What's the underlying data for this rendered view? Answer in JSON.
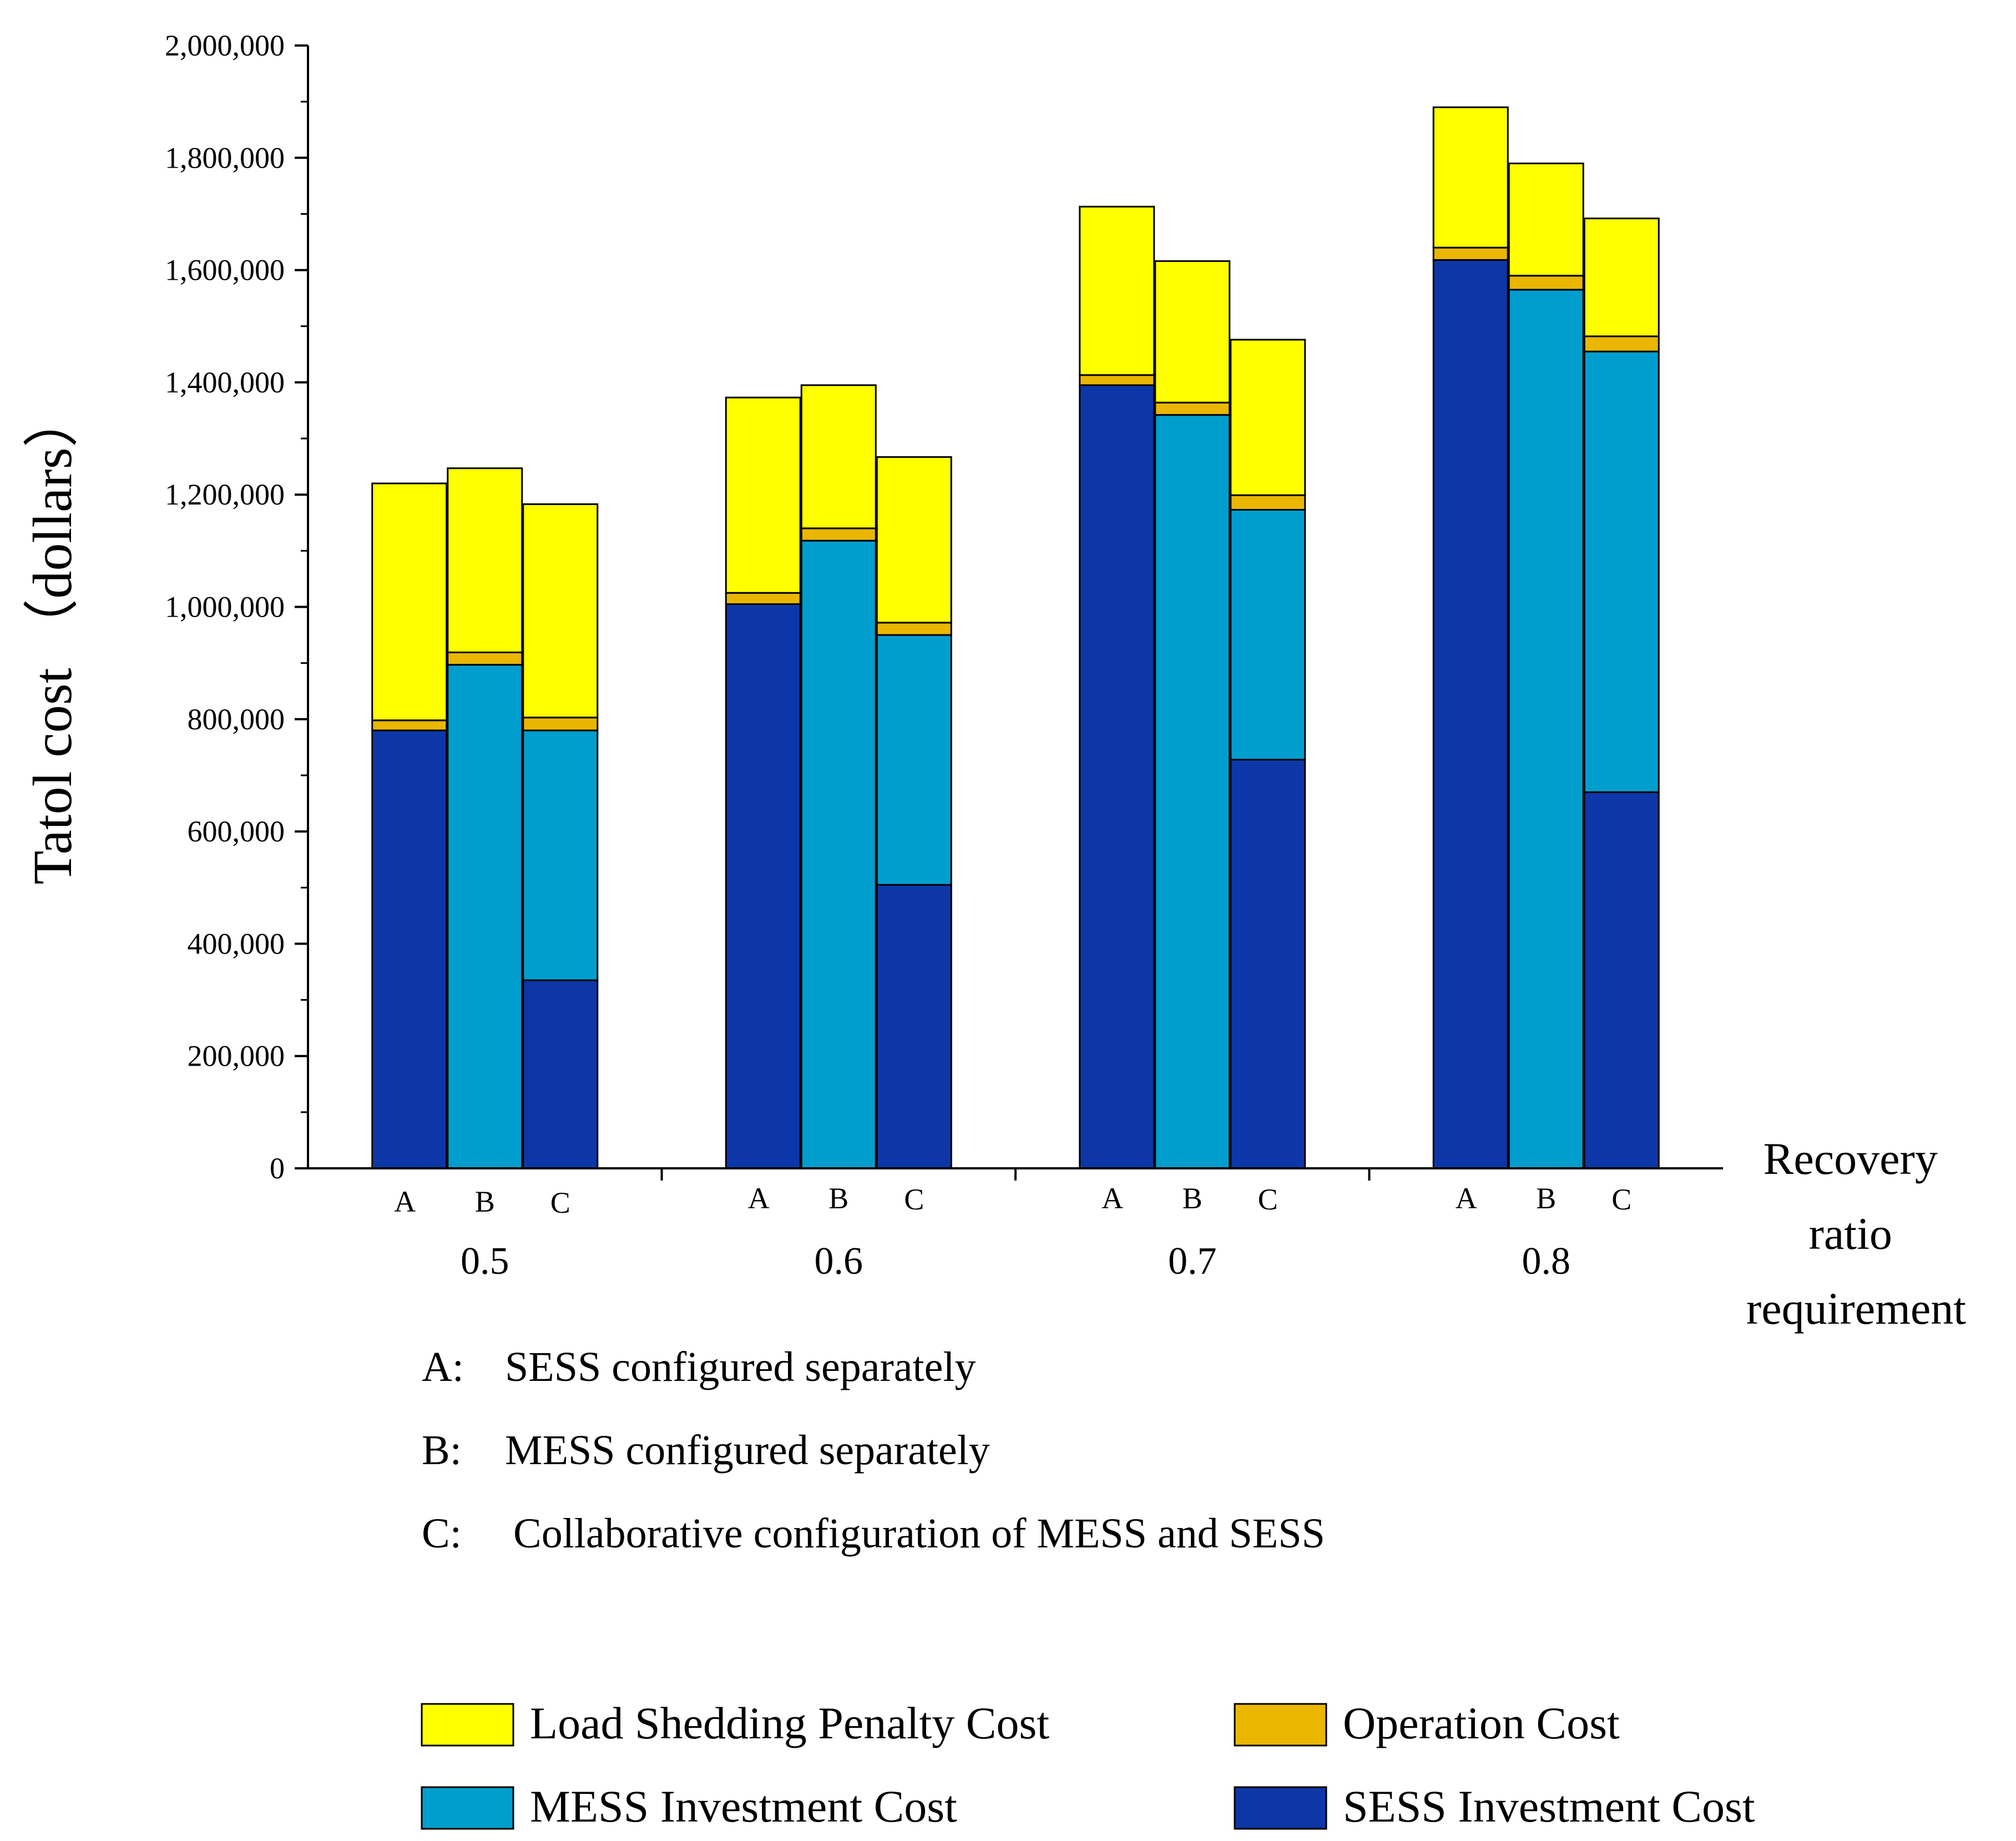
{
  "chart_data": {
    "type": "bar",
    "stacked": true,
    "ylabel": "Tatol cost （dollars）",
    "xlabel": [
      "Recovery",
      "ratio",
      "requirement"
    ],
    "ylim": [
      0,
      2000000
    ],
    "yticks": [
      0,
      200000,
      400000,
      600000,
      800000,
      1000000,
      1200000,
      1400000,
      1600000,
      1800000,
      2000000
    ],
    "ytick_labels": [
      "0",
      "200,000",
      "400,000",
      "600,000",
      "800,000",
      "1,000,000",
      "1,200,000",
      "1,400,000",
      "1,600,000",
      "1,800,000",
      "2,000,000"
    ],
    "groups": [
      "0.5",
      "0.6",
      "0.7",
      "0.8"
    ],
    "subcategories": [
      "A",
      "B",
      "C"
    ],
    "descriptions": [
      {
        "key": "A:",
        "text": "SESS configured separately"
      },
      {
        "key": "B:",
        "text": "MESS configured separately"
      },
      {
        "key": "C:",
        "text": "Collaborative configuration of MESS and SESS"
      }
    ],
    "series": [
      {
        "name": "SESS Investment Cost",
        "color": "#0D37A8",
        "values": [
          [
            780000,
            0,
            335000
          ],
          [
            1005000,
            0,
            505000
          ],
          [
            1395000,
            0,
            728000
          ],
          [
            1618000,
            0,
            670000
          ]
        ]
      },
      {
        "name": "MESS Investment Cost",
        "color": "#009ECE",
        "values": [
          [
            0,
            897000,
            445000
          ],
          [
            0,
            1118000,
            445000
          ],
          [
            0,
            1342000,
            445000
          ],
          [
            0,
            1565000,
            785000
          ]
        ]
      },
      {
        "name": "Operation Cost",
        "color": "#EAB600",
        "values": [
          [
            18000,
            22000,
            23000
          ],
          [
            20000,
            22000,
            22000
          ],
          [
            18000,
            22000,
            26000
          ],
          [
            22000,
            25000,
            27000
          ]
        ]
      },
      {
        "name": "Load Shedding Penalty Cost",
        "color": "#FFFF00",
        "values": [
          [
            422000,
            328000,
            380000
          ],
          [
            348000,
            255000,
            295000
          ],
          [
            300000,
            252000,
            277000
          ],
          [
            250000,
            200000,
            210000
          ]
        ]
      }
    ],
    "legend": [
      {
        "label": "Load Shedding Penalty Cost",
        "color": "#FFFF00"
      },
      {
        "label": "Operation Cost",
        "color": "#EAB600"
      },
      {
        "label": "MESS Investment Cost",
        "color": "#009ECE"
      },
      {
        "label": "SESS Investment Cost",
        "color": "#0D37A8"
      }
    ]
  }
}
